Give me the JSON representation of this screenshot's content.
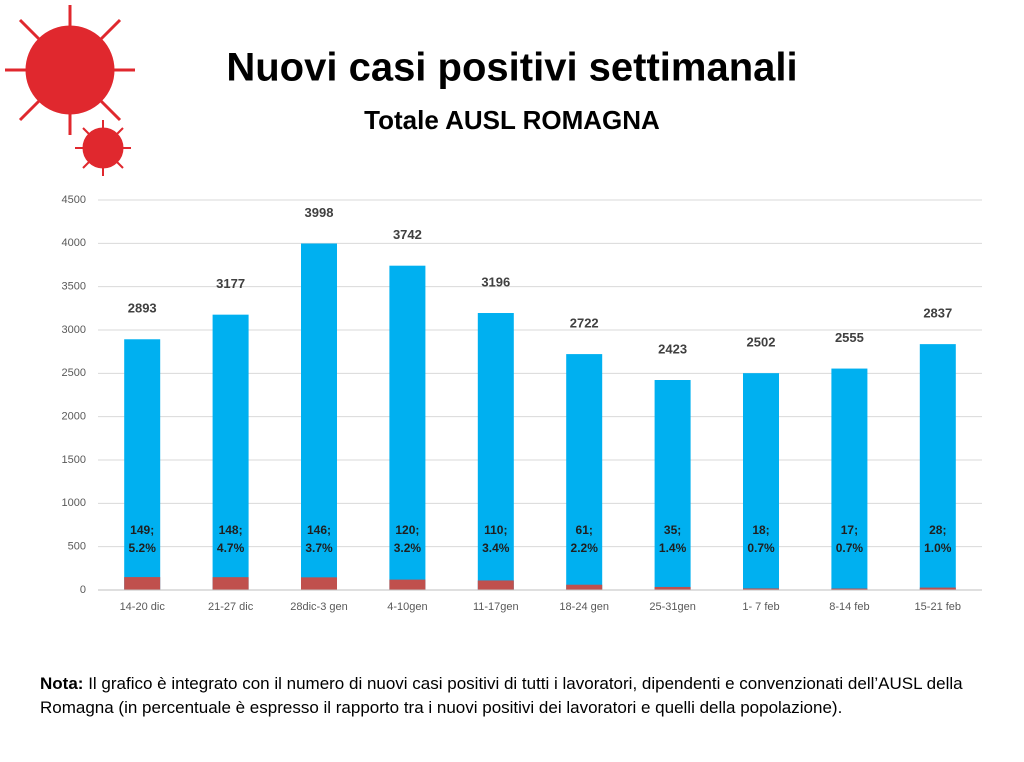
{
  "chart_data": {
    "type": "bar",
    "title": "Nuovi casi positivi settimanali",
    "subtitle": "Totale AUSL ROMAGNA",
    "categories": [
      "14-20 dic",
      "21-27 dic",
      "28dic-3 gen",
      "4-10gen",
      "11-17gen",
      "18-24 gen",
      "25-31gen",
      "1- 7 feb",
      "8-14 feb",
      "15-21 feb"
    ],
    "series": [
      {
        "color": "#00b0f0",
        "values": [
          2893,
          3177,
          3998,
          3742,
          3196,
          2722,
          2423,
          2502,
          2555,
          2837
        ]
      },
      {
        "color": "#c0504d",
        "values": [
          149,
          148,
          146,
          120,
          110,
          61,
          35,
          18,
          17,
          28
        ],
        "value_labels": [
          "149; 5.2%",
          "148; 4.7%",
          "146; 3.7%",
          "120; 3.2%",
          "110; 3.4%",
          "61; 2.2%",
          "35; 1.4%",
          "18; 0.7%",
          "17; 0.7%",
          "28; 1.0%"
        ]
      }
    ],
    "ylim": [
      0,
      4500
    ],
    "yticks": [
      0,
      500,
      1000,
      1500,
      2000,
      2500,
      3000,
      3500,
      4000,
      4500
    ],
    "grid": true
  },
  "note": {
    "label": "Nota:",
    "text": "Il grafico è integrato con il numero di nuovi casi positivi di tutti i lavoratori, dipendenti e convenzionati dell’AUSL della Romagna (in percentuale è espresso il rapporto tra i nuovi positivi dei lavoratori e quelli della popolazione)."
  }
}
